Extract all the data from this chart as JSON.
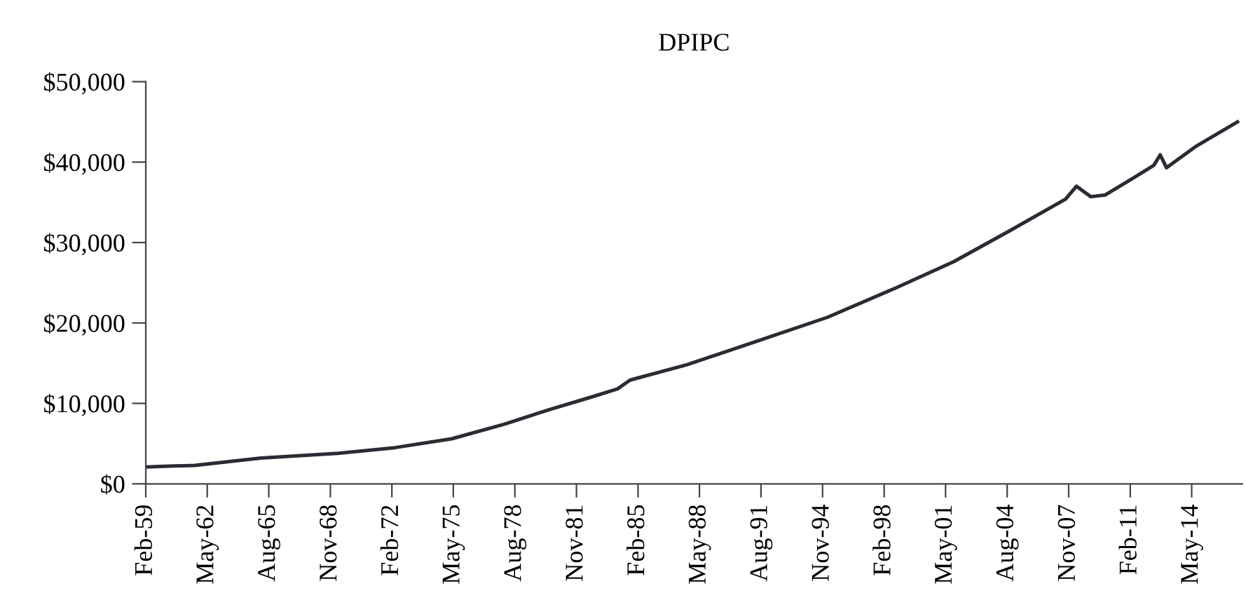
{
  "chart_data": {
    "type": "line",
    "title": "DPIPC",
    "x": [
      "1959-02",
      "1961-09",
      "1965-03",
      "1969-04",
      "1972-04",
      "1975-04",
      "1978-01",
      "1980-07",
      "1982-07",
      "1984-01",
      "1984-09",
      "1987-09",
      "1991-05",
      "1995-02",
      "1998-10",
      "2001-10",
      "2004-09",
      "2007-09",
      "2008-04",
      "2009-01",
      "2009-10",
      "2011-03",
      "2012-05",
      "2012-09",
      "2013-01",
      "2014-08",
      "2016-10"
    ],
    "series": [
      {
        "color": "#2b2b33",
        "values": [
          2100,
          2300,
          3200,
          3800,
          4500,
          5600,
          7400,
          9300,
          10700,
          11800,
          12900,
          14800,
          17700,
          20700,
          24400,
          27600,
          31400,
          35400,
          37000,
          35700,
          35900,
          37900,
          39600,
          40900,
          39300,
          42000,
          45000
        ]
      }
    ],
    "xlim": [
      "1959-02",
      "2017-01"
    ],
    "xticks": [
      {
        "value": "1959-02",
        "label": "Feb-59"
      },
      {
        "value": "1962-05",
        "label": "May-62"
      },
      {
        "value": "1965-08",
        "label": "Aug-65"
      },
      {
        "value": "1968-11",
        "label": "Nov-68"
      },
      {
        "value": "1972-02",
        "label": "Feb-72"
      },
      {
        "value": "1975-05",
        "label": "May-75"
      },
      {
        "value": "1978-08",
        "label": "Aug-78"
      },
      {
        "value": "1981-11",
        "label": "Nov-81"
      },
      {
        "value": "1985-02",
        "label": "Feb-85"
      },
      {
        "value": "1988-05",
        "label": "May-88"
      },
      {
        "value": "1991-08",
        "label": "Aug-91"
      },
      {
        "value": "1994-11",
        "label": "Nov-94"
      },
      {
        "value": "1998-02",
        "label": "Feb-98"
      },
      {
        "value": "2001-05",
        "label": "May-01"
      },
      {
        "value": "2004-08",
        "label": "Aug-04"
      },
      {
        "value": "2007-11",
        "label": "Nov-07"
      },
      {
        "value": "2011-02",
        "label": "Feb-11"
      },
      {
        "value": "2014-05",
        "label": "May-14"
      }
    ],
    "ylim": [
      0,
      50000
    ],
    "yticks": [
      {
        "value": 0,
        "label": "$0"
      },
      {
        "value": 10000,
        "label": "$10,000"
      },
      {
        "value": 20000,
        "label": "$20,000"
      },
      {
        "value": 30000,
        "label": "$30,000"
      },
      {
        "value": 40000,
        "label": "$40,000"
      },
      {
        "value": 50000,
        "label": "$50,000"
      }
    ],
    "grid": false,
    "legend": false
  }
}
